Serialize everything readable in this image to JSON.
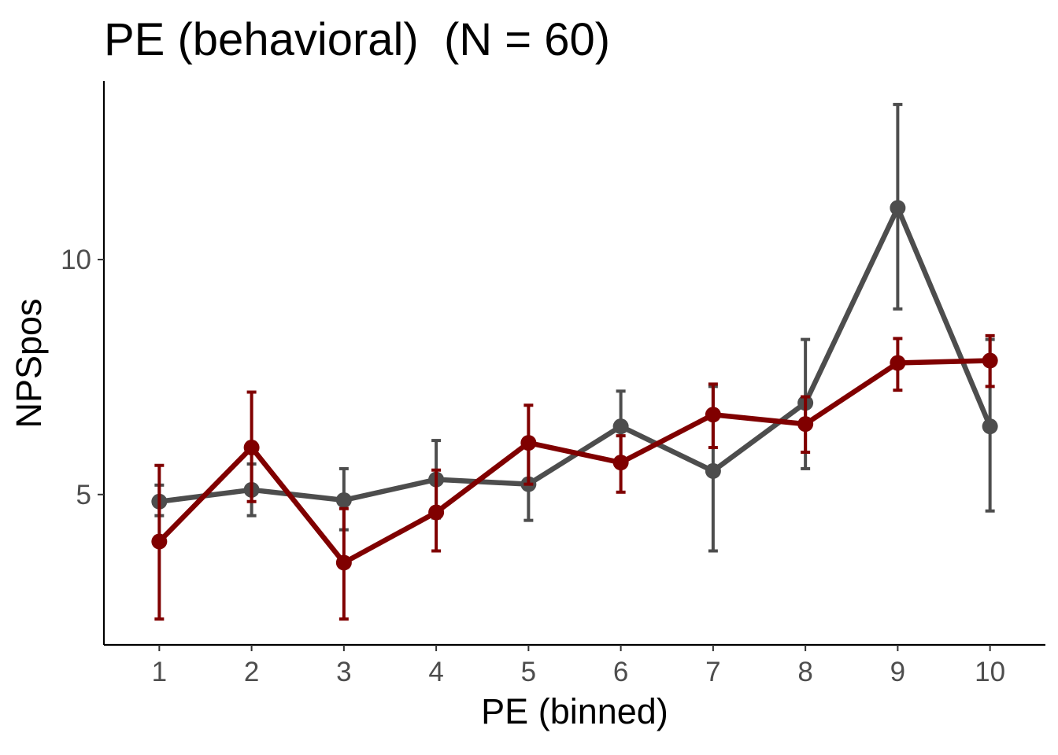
{
  "chart_data": {
    "type": "line",
    "title": "PE (behavioral)  (N = 60)",
    "xlabel": "PE (binned)",
    "ylabel": "NPSpos",
    "x": [
      1,
      2,
      3,
      4,
      5,
      6,
      7,
      8,
      9,
      10
    ],
    "x_tick_labels": [
      "1",
      "2",
      "3",
      "4",
      "5",
      "6",
      "7",
      "8",
      "9",
      "10"
    ],
    "y_ticks": [
      5,
      10
    ],
    "y_tick_labels": [
      "5",
      "10"
    ],
    "xlim": [
      0.4,
      10.6
    ],
    "ylim": [
      1.8,
      13.8
    ],
    "grid": false,
    "series": [
      {
        "color": "#4d4d4d",
        "values": [
          4.85,
          5.1,
          4.88,
          5.32,
          5.22,
          6.45,
          5.5,
          6.95,
          11.1,
          6.45
        ],
        "err_low": [
          4.55,
          4.55,
          4.25,
          4.5,
          4.45,
          5.75,
          3.8,
          5.55,
          8.95,
          4.65
        ],
        "err_high": [
          5.2,
          5.65,
          5.55,
          6.15,
          6.05,
          7.2,
          7.3,
          8.3,
          13.3,
          8.3
        ]
      },
      {
        "color": "#800000",
        "values": [
          4.0,
          6.0,
          3.55,
          4.62,
          6.1,
          5.68,
          6.7,
          6.5,
          7.8,
          7.85
        ],
        "err_low": [
          2.35,
          4.85,
          2.35,
          3.8,
          5.22,
          5.05,
          6.0,
          5.9,
          7.22,
          7.3
        ],
        "err_high": [
          5.62,
          7.18,
          4.7,
          5.52,
          6.9,
          6.25,
          7.35,
          7.08,
          8.32,
          8.38
        ]
      }
    ]
  }
}
